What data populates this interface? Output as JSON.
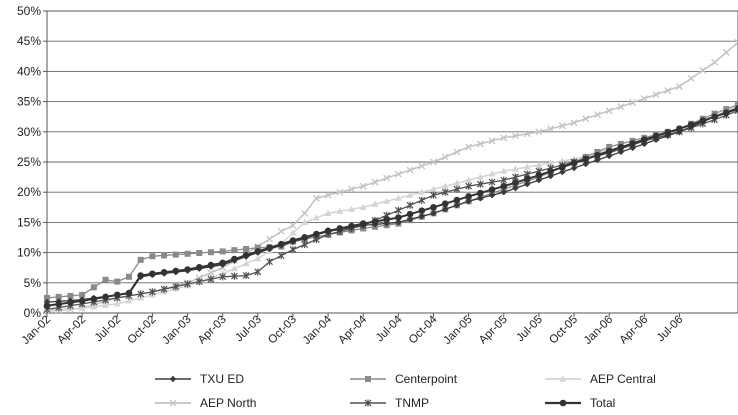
{
  "chart_data": {
    "type": "line",
    "title": "",
    "xlabel": "",
    "ylabel": "",
    "ylim": [
      0,
      50
    ],
    "y_ticks": [
      "0%",
      "5%",
      "10%",
      "15%",
      "20%",
      "25%",
      "30%",
      "35%",
      "40%",
      "45%",
      "50%"
    ],
    "x_ticks": [
      "Jan-02",
      "Apr-02",
      "Jul-02",
      "Oct-02",
      "Jan-03",
      "Apr-03",
      "Jul-03",
      "Oct-03",
      "Jan-04",
      "Apr-04",
      "Jul-04",
      "Oct-04",
      "Jan-05",
      "Apr-05",
      "Jul-05",
      "Oct-05",
      "Jan-06",
      "Apr-06",
      "Jul-06"
    ],
    "x_unit": "months since Jan-02",
    "grid": "horizontal",
    "legend_position": "bottom",
    "series": [
      {
        "name": "TXU ED",
        "color": "#3a3a3a",
        "marker": "diamond",
        "line_width": 1.3,
        "points": [
          [
            0,
            1.8
          ],
          [
            3,
            2.2
          ],
          [
            6,
            3.0
          ],
          [
            7,
            3.2
          ],
          [
            8,
            6.0
          ],
          [
            9,
            6.3
          ],
          [
            12,
            7.0
          ],
          [
            15,
            8.0
          ],
          [
            18,
            10.0
          ],
          [
            21,
            11.8
          ],
          [
            24,
            13.5
          ],
          [
            27,
            14.5
          ],
          [
            30,
            15.0
          ],
          [
            33,
            16.5
          ],
          [
            36,
            18.5
          ],
          [
            39,
            20.0
          ],
          [
            42,
            22.0
          ],
          [
            45,
            24.0
          ],
          [
            48,
            26.0
          ],
          [
            51,
            28.0
          ],
          [
            54,
            30.0
          ],
          [
            57,
            32.5
          ],
          [
            59,
            34.0
          ]
        ]
      },
      {
        "name": "Centerpoint",
        "color": "#8a8a8a",
        "marker": "square",
        "line_width": 1.3,
        "points": [
          [
            0,
            2.5
          ],
          [
            3,
            3.0
          ],
          [
            5,
            5.5
          ],
          [
            6,
            5.2
          ],
          [
            7,
            6.0
          ],
          [
            8,
            8.8
          ],
          [
            9,
            9.4
          ],
          [
            12,
            9.8
          ],
          [
            15,
            10.2
          ],
          [
            18,
            10.8
          ],
          [
            20,
            11.0
          ],
          [
            21,
            11.8
          ],
          [
            24,
            13.0
          ],
          [
            27,
            14.0
          ],
          [
            30,
            14.8
          ],
          [
            33,
            16.5
          ],
          [
            36,
            18.5
          ],
          [
            39,
            20.5
          ],
          [
            42,
            22.5
          ],
          [
            45,
            25.0
          ],
          [
            48,
            27.5
          ],
          [
            51,
            29.0
          ],
          [
            54,
            30.5
          ],
          [
            57,
            33.0
          ],
          [
            59,
            34.5
          ]
        ]
      },
      {
        "name": "AEP Central",
        "color": "#d4d4d4",
        "marker": "triangle",
        "line_width": 1.5,
        "points": [
          [
            0,
            0.5
          ],
          [
            3,
            0.8
          ],
          [
            6,
            1.5
          ],
          [
            9,
            3.0
          ],
          [
            12,
            4.5
          ],
          [
            15,
            6.5
          ],
          [
            18,
            9.0
          ],
          [
            20,
            11.5
          ],
          [
            22,
            15.0
          ],
          [
            24,
            16.5
          ],
          [
            27,
            17.5
          ],
          [
            30,
            19.0
          ],
          [
            33,
            20.5
          ],
          [
            36,
            22.0
          ],
          [
            39,
            23.5
          ],
          [
            42,
            24.5
          ],
          [
            45,
            25.5
          ],
          [
            48,
            27.0
          ],
          [
            51,
            28.5
          ],
          [
            54,
            30.0
          ],
          [
            57,
            32.5
          ],
          [
            59,
            34.5
          ]
        ]
      },
      {
        "name": "AEP North",
        "color": "#c2c2c2",
        "marker": "x",
        "line_width": 1.5,
        "points": [
          [
            0,
            0.3
          ],
          [
            3,
            0.8
          ],
          [
            6,
            2.5
          ],
          [
            9,
            3.5
          ],
          [
            12,
            5.0
          ],
          [
            15,
            7.5
          ],
          [
            18,
            11.0
          ],
          [
            20,
            13.5
          ],
          [
            21,
            14.5
          ],
          [
            22,
            16.5
          ],
          [
            23,
            19.0
          ],
          [
            24,
            19.5
          ],
          [
            27,
            21.0
          ],
          [
            30,
            23.0
          ],
          [
            33,
            25.0
          ],
          [
            36,
            27.5
          ],
          [
            39,
            29.0
          ],
          [
            42,
            30.0
          ],
          [
            45,
            31.5
          ],
          [
            48,
            33.5
          ],
          [
            51,
            35.5
          ],
          [
            54,
            37.5
          ],
          [
            57,
            41.5
          ],
          [
            59,
            44.8
          ]
        ]
      },
      {
        "name": "TNMP",
        "color": "#505050",
        "marker": "asterisk",
        "line_width": 1.3,
        "points": [
          [
            0,
            0.6
          ],
          [
            3,
            1.5
          ],
          [
            6,
            2.5
          ],
          [
            9,
            3.5
          ],
          [
            12,
            4.8
          ],
          [
            15,
            6.0
          ],
          [
            17,
            6.2
          ],
          [
            18,
            6.8
          ],
          [
            19,
            8.5
          ],
          [
            21,
            10.5
          ],
          [
            24,
            13.0
          ],
          [
            27,
            14.5
          ],
          [
            30,
            17.0
          ],
          [
            33,
            19.5
          ],
          [
            36,
            21.0
          ],
          [
            39,
            22.0
          ],
          [
            42,
            23.5
          ],
          [
            45,
            25.0
          ],
          [
            48,
            26.5
          ],
          [
            51,
            28.5
          ],
          [
            54,
            30.0
          ],
          [
            57,
            32.0
          ],
          [
            59,
            33.5
          ]
        ]
      },
      {
        "name": "Total",
        "color": "#333333",
        "marker": "circle",
        "line_width": 2,
        "points": [
          [
            0,
            1.2
          ],
          [
            3,
            2.0
          ],
          [
            6,
            3.0
          ],
          [
            7,
            3.3
          ],
          [
            8,
            6.2
          ],
          [
            9,
            6.5
          ],
          [
            12,
            7.2
          ],
          [
            15,
            8.3
          ],
          [
            18,
            10.2
          ],
          [
            21,
            12.0
          ],
          [
            24,
            13.6
          ],
          [
            27,
            14.8
          ],
          [
            30,
            15.8
          ],
          [
            33,
            17.5
          ],
          [
            36,
            19.3
          ],
          [
            39,
            21.0
          ],
          [
            42,
            22.8
          ],
          [
            45,
            24.8
          ],
          [
            48,
            26.8
          ],
          [
            51,
            28.7
          ],
          [
            54,
            30.5
          ],
          [
            57,
            32.5
          ],
          [
            59,
            33.8
          ]
        ]
      }
    ]
  }
}
